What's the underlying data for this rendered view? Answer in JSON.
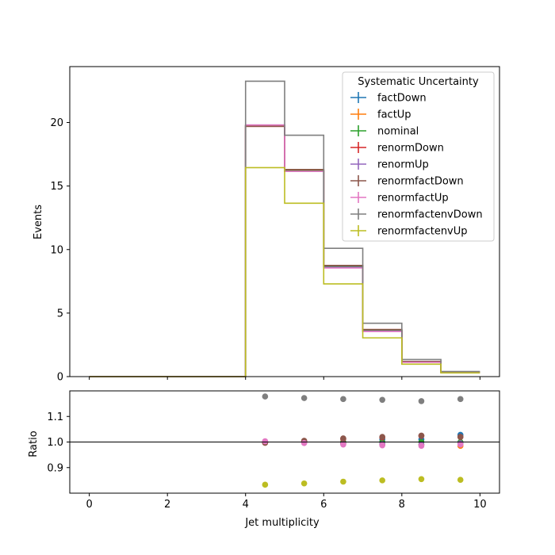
{
  "chart_data": [
    {
      "type": "line",
      "panel": "main",
      "drawstyle": "steps",
      "ylabel": "Events",
      "xlim": [
        -0.5,
        10.5
      ],
      "ylim": [
        0,
        24.4
      ],
      "xticks": [
        "0",
        "2",
        "4",
        "6",
        "8",
        "10"
      ],
      "yticks": [
        "0",
        "5",
        "10",
        "15",
        "20"
      ],
      "legend": {
        "title": "Systematic Uncertainty",
        "position": "top-right"
      },
      "bin_edges": [
        0,
        1,
        2,
        3,
        4,
        5,
        6,
        7,
        8,
        9,
        10
      ],
      "series": [
        {
          "name": "factDown",
          "color": "#1f77b4",
          "values": [
            0,
            0,
            0,
            0,
            19.75,
            16.2,
            8.65,
            3.65,
            1.2,
            0.35
          ]
        },
        {
          "name": "factUp",
          "color": "#ff7f0e",
          "values": [
            0,
            0,
            0,
            0,
            19.75,
            16.25,
            8.6,
            3.6,
            1.15,
            0.33
          ]
        },
        {
          "name": "nominal",
          "color": "#2ca02c",
          "values": [
            0,
            0,
            0,
            0,
            19.75,
            16.2,
            8.65,
            3.6,
            1.15,
            0.34
          ]
        },
        {
          "name": "renormDown",
          "color": "#d62728",
          "values": [
            0,
            0,
            0,
            0,
            19.7,
            16.3,
            8.75,
            3.7,
            1.18,
            0.35
          ]
        },
        {
          "name": "renormUp",
          "color": "#9467bd",
          "values": [
            0,
            0,
            0,
            0,
            19.8,
            16.15,
            8.6,
            3.58,
            1.14,
            0.34
          ]
        },
        {
          "name": "renormfactDown",
          "color": "#8c564b",
          "values": [
            0,
            0,
            0,
            0,
            19.7,
            16.3,
            8.75,
            3.7,
            1.2,
            0.35
          ]
        },
        {
          "name": "renormfactUp",
          "color": "#e377c2",
          "values": [
            0,
            0,
            0,
            0,
            19.8,
            16.15,
            8.55,
            3.55,
            1.13,
            0.34
          ]
        },
        {
          "name": "renormfactenvDown",
          "color": "#7f7f7f",
          "values": [
            0,
            0,
            0,
            0,
            23.25,
            19.0,
            10.1,
            4.2,
            1.35,
            0.4
          ]
        },
        {
          "name": "renormfactenvUp",
          "color": "#bcbd22",
          "values": [
            0,
            0,
            0,
            0,
            16.45,
            13.65,
            7.3,
            3.05,
            0.98,
            0.29
          ]
        }
      ]
    },
    {
      "type": "scatter",
      "panel": "ratio",
      "xlabel": "Jet multiplicity",
      "ylabel": "Ratio",
      "xlim": [
        -0.5,
        10.5
      ],
      "ylim": [
        0.8,
        1.2
      ],
      "xticks": [
        "0",
        "2",
        "4",
        "6",
        "8",
        "10"
      ],
      "yticks": [
        "0.9",
        "1.0",
        "1.1"
      ],
      "reference_line": 1.0,
      "x": [
        4.5,
        5.5,
        6.5,
        7.5,
        8.5,
        9.5
      ],
      "series": [
        {
          "name": "factDown",
          "color": "#1f77b4",
          "values": [
            1.0,
            1.0,
            1.0,
            1.01,
            1.01,
            1.028
          ]
        },
        {
          "name": "factUp",
          "color": "#ff7f0e",
          "values": [
            1.0,
            1.0,
            0.995,
            0.99,
            0.99,
            0.985
          ]
        },
        {
          "name": "nominal",
          "color": "#2ca02c",
          "values": [
            1.0,
            1.0,
            1.0,
            1.0,
            1.0,
            1.0
          ]
        },
        {
          "name": "renormDown",
          "color": "#d62728",
          "values": [
            0.997,
            1.004,
            1.012,
            1.018,
            1.024,
            1.02
          ]
        },
        {
          "name": "renormUp",
          "color": "#9467bd",
          "values": [
            1.002,
            0.997,
            0.993,
            0.992,
            0.99,
            0.995
          ]
        },
        {
          "name": "renormfactDown",
          "color": "#8c564b",
          "values": [
            0.997,
            1.005,
            1.014,
            1.02,
            1.025,
            1.02
          ]
        },
        {
          "name": "renormfactUp",
          "color": "#e377c2",
          "values": [
            1.003,
            0.996,
            0.99,
            0.987,
            0.985,
            0.99
          ]
        },
        {
          "name": "renormfactenvDown",
          "color": "#7f7f7f",
          "values": [
            1.178,
            1.172,
            1.168,
            1.165,
            1.16,
            1.168
          ]
        },
        {
          "name": "renormfactenvUp",
          "color": "#bcbd22",
          "values": [
            0.833,
            0.838,
            0.845,
            0.85,
            0.855,
            0.852
          ]
        }
      ]
    }
  ]
}
